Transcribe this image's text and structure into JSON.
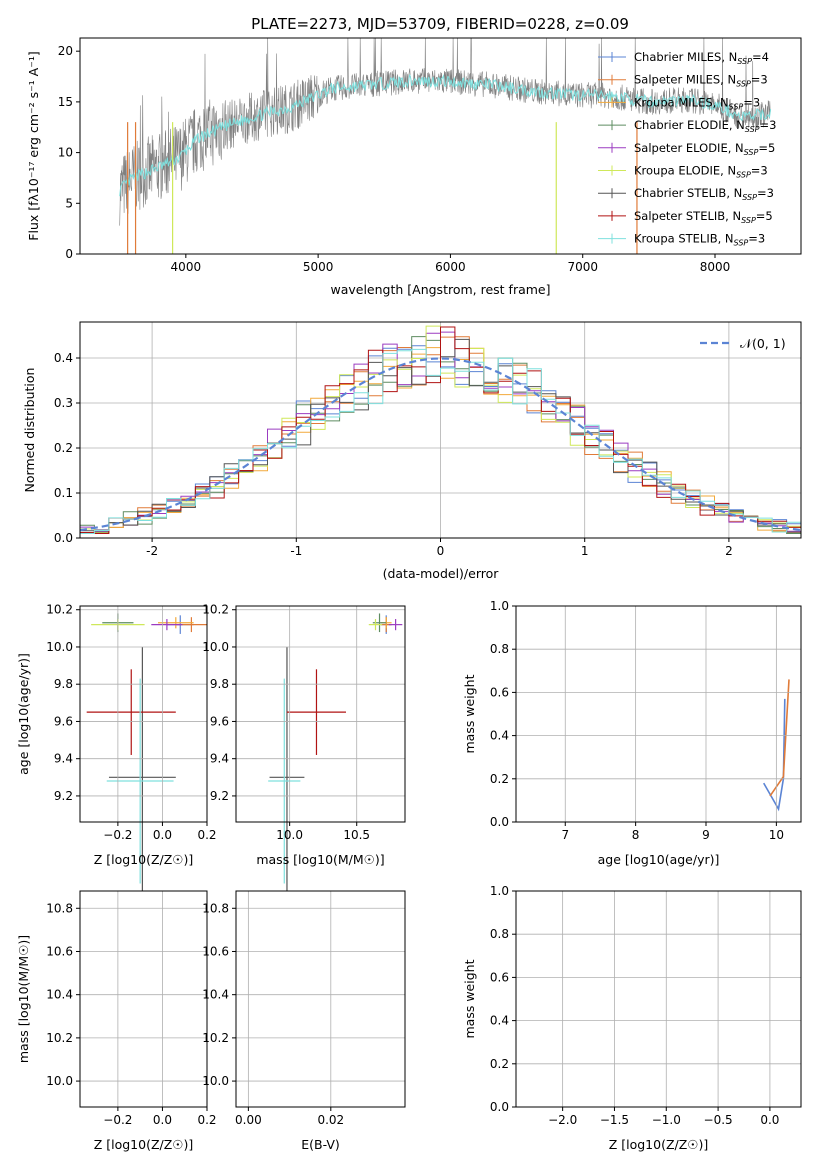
{
  "colors": {
    "chabrier_miles": "#5b84d4",
    "salpeter_miles": "#e07b39",
    "kroupa_miles": "#f2a93b",
    "chabrier_elodie": "#5e8c61",
    "salpeter_elodie": "#9b3cc1",
    "kroupa_elodie": "#cfe85a",
    "chabrier_stelib": "#555555",
    "salpeter_stelib": "#b01313",
    "kroupa_stelib": "#7fe0de",
    "data_gray": "#808080",
    "normal": "#5b84d4"
  },
  "chart_data": [
    {
      "type": "line",
      "title": "PLATE=2273, MJD=53709, FIBERID=0228, z=0.09",
      "xlabel": "wavelength [Angstrom, rest frame]",
      "ylabel": "Flux [fλ10⁻¹⁷ erg cm⁻² s⁻¹ A⁻¹]",
      "xlim": [
        3200,
        8650
      ],
      "ylim": [
        0,
        21.3
      ],
      "xticks": [
        4000,
        5000,
        6000,
        7000,
        8000
      ],
      "yticks": [
        0,
        5,
        10,
        15,
        20
      ],
      "legend": [
        "Chabrier MILES, N_SSP=4",
        "Salpeter MILES, N_SSP=3",
        "Kroupa MILES, N_SSP=3",
        "Chabrier ELODIE, N_SSP=3",
        "Salpeter ELODIE, N_SSP=5",
        "Kroupa ELODIE, N_SSP=3",
        "Chabrier STELIB, N_SSP=3",
        "Salpeter STELIB, N_SSP=5",
        "Kroupa STELIB, N_SSP=3"
      ],
      "legend_position": "right",
      "continuum": [
        [
          3500,
          6.3
        ],
        [
          3600,
          7.5
        ],
        [
          3800,
          8.6
        ],
        [
          3950,
          9.5
        ],
        [
          4100,
          11.5
        ],
        [
          4300,
          12.6
        ],
        [
          4500,
          13.5
        ],
        [
          4800,
          14.5
        ],
        [
          5100,
          16.3
        ],
        [
          5400,
          16.7
        ],
        [
          5700,
          17.1
        ],
        [
          6000,
          17.0
        ],
        [
          6300,
          16.7
        ],
        [
          6600,
          16.1
        ],
        [
          6900,
          15.7
        ],
        [
          7200,
          15.6
        ],
        [
          7500,
          15.0
        ],
        [
          7800,
          15.2
        ],
        [
          8000,
          14.7
        ],
        [
          8200,
          13.5
        ],
        [
          8400,
          13.8
        ]
      ]
    },
    {
      "type": "bar",
      "xlabel": "(data-model)/error",
      "ylabel": "Normed distribution",
      "xlim": [
        -2.5,
        2.5
      ],
      "ylim": [
        0,
        0.48
      ],
      "xticks": [
        -2,
        -1,
        0,
        1,
        2
      ],
      "yticks": [
        0.0,
        0.1,
        0.2,
        0.3,
        0.4
      ],
      "normal_label": "𝒩(0, 1)",
      "legend_position": "top-right"
    },
    {
      "type": "scatter",
      "xlabel": "Z [log10(Z/Z☉)]",
      "ylabel": "age  [log10(age/yr)]",
      "xlim": [
        -0.37,
        0.2
      ],
      "ylim": [
        9.06,
        10.22
      ],
      "xticks": [
        -0.2,
        0.0,
        0.2
      ],
      "yticks": [
        9.2,
        9.4,
        9.6,
        9.8,
        10.0,
        10.2
      ],
      "points": [
        {
          "series": "chabrier_miles",
          "x": 0.08,
          "y": 10.12,
          "xe": 0.06,
          "ye": 0.05
        },
        {
          "series": "salpeter_miles",
          "x": 0.13,
          "y": 10.12,
          "xe": 0.07,
          "ye": 0.04
        },
        {
          "series": "kroupa_miles",
          "x": 0.06,
          "y": 10.13,
          "xe": 0.08,
          "ye": 0.03
        },
        {
          "series": "chabrier_elodie",
          "x": -0.2,
          "y": 10.13,
          "xe": 0.07,
          "ye": 0.05
        },
        {
          "series": "salpeter_elodie",
          "x": 0.02,
          "y": 10.12,
          "xe": 0.07,
          "ye": 0.03
        },
        {
          "series": "kroupa_elodie",
          "x": -0.2,
          "y": 10.12,
          "xe": 0.12,
          "ye": 0.03
        },
        {
          "series": "chabrier_stelib",
          "x": -0.09,
          "y": 9.3,
          "xe": 0.15,
          "ye": 0.7
        },
        {
          "series": "salpeter_stelib",
          "x": -0.14,
          "y": 9.65,
          "xe": 0.2,
          "ye": 0.23
        },
        {
          "series": "kroupa_stelib",
          "x": -0.1,
          "y": 9.28,
          "xe": 0.15,
          "ye": 0.55
        }
      ]
    },
    {
      "type": "scatter",
      "xlabel": "mass [log10(M/M☉)]",
      "ylabel": "",
      "xlim": [
        9.6,
        10.86
      ],
      "ylim": [
        9.06,
        10.22
      ],
      "xticks": [
        10.0,
        10.5
      ],
      "yticks": [
        9.2,
        9.4,
        9.6,
        9.8,
        10.0,
        10.2
      ],
      "points": [
        {
          "series": "chabrier_miles",
          "x": 10.72,
          "y": 10.12,
          "xe": 0.04,
          "ye": 0.05
        },
        {
          "series": "salpeter_miles",
          "x": 10.72,
          "y": 10.12,
          "xe": 0.04,
          "ye": 0.04
        },
        {
          "series": "kroupa_miles",
          "x": 10.72,
          "y": 10.13,
          "xe": 0.04,
          "ye": 0.03
        },
        {
          "series": "chabrier_elodie",
          "x": 10.67,
          "y": 10.13,
          "xe": 0.05,
          "ye": 0.05
        },
        {
          "series": "salpeter_elodie",
          "x": 10.79,
          "y": 10.12,
          "xe": 0.05,
          "ye": 0.03
        },
        {
          "series": "kroupa_elodie",
          "x": 10.64,
          "y": 10.12,
          "xe": 0.05,
          "ye": 0.03
        },
        {
          "series": "chabrier_stelib",
          "x": 9.98,
          "y": 9.3,
          "xe": 0.13,
          "ye": 0.7
        },
        {
          "series": "salpeter_stelib",
          "x": 10.2,
          "y": 9.65,
          "xe": 0.22,
          "ye": 0.23
        },
        {
          "series": "kroupa_stelib",
          "x": 9.96,
          "y": 9.28,
          "xe": 0.12,
          "ye": 0.55
        }
      ]
    },
    {
      "type": "line",
      "xlabel": "age  [log10(age/yr)]",
      "ylabel": "mass weight",
      "xlim": [
        6.3,
        10.35
      ],
      "ylim": [
        0,
        1.0
      ],
      "xticks": [
        7,
        8,
        9,
        10
      ],
      "yticks": [
        0.0,
        0.2,
        0.4,
        0.6,
        0.8,
        1.0
      ],
      "series": [
        {
          "series": "chabrier_miles",
          "x": [
            9.82,
            10.03,
            10.1,
            10.12
          ],
          "y": [
            0.18,
            0.06,
            0.2,
            0.57
          ]
        },
        {
          "series": "salpeter_miles",
          "x": [
            9.91,
            10.1,
            10.18
          ],
          "y": [
            0.12,
            0.21,
            0.66
          ]
        },
        {
          "series": "chabrier_elodie",
          "x": 6.5,
          "y": 0
        }
      ]
    },
    {
      "type": "line",
      "xlabel": "Z [log10(Z/Z☉)]",
      "ylabel": "mass weight",
      "xlim": [
        -2.45,
        0.3
      ],
      "ylim": [
        0,
        1.0
      ],
      "xticks": [
        -2.0,
        -1.5,
        -1.0,
        -0.5,
        0.0
      ],
      "yticks": [
        0.0,
        0.2,
        0.4,
        0.6,
        0.8,
        1.0
      ],
      "series": []
    },
    {
      "type": "scatter",
      "xlabel": "Z [log10(Z/Z☉)]",
      "ylabel": "mass [log10(M/M☉)]",
      "xlim": [
        -0.37,
        0.2
      ],
      "ylim": [
        9.88,
        10.88
      ],
      "xticks": [
        -0.2,
        0.0,
        0.2
      ],
      "yticks": [
        10.0,
        10.2,
        10.4,
        10.6,
        10.8
      ],
      "points": []
    },
    {
      "type": "scatter",
      "xlabel": "E(B-V)",
      "ylabel": "",
      "xlim": [
        -0.003,
        0.038
      ],
      "ylim": [
        9.88,
        10.88
      ],
      "xticks": [
        0.0,
        0.02
      ],
      "yticks": [
        10.0,
        10.2,
        10.4,
        10.6,
        10.8
      ],
      "points": []
    }
  ]
}
